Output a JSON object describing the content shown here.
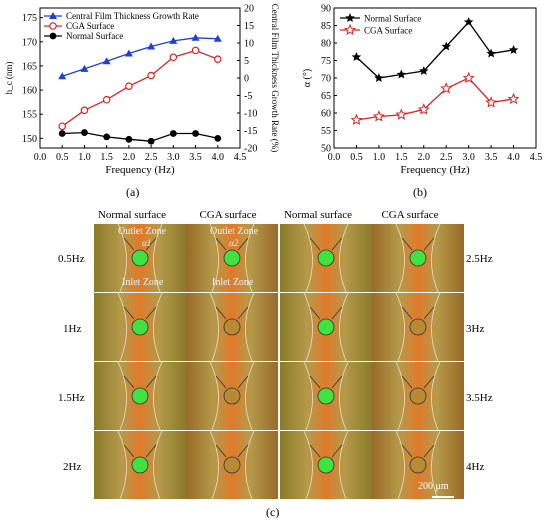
{
  "chart_data": [
    {
      "id": "a",
      "type": "line",
      "panel_label": "(a)",
      "xlabel": "Frequency (Hz)",
      "ylabel_left": "h_c (nm)",
      "ylabel_right": "Central Film Thickness Growth Rate (%)",
      "xlim": [
        0.0,
        4.5
      ],
      "xticks": [
        "0.0",
        "0.5",
        "1.0",
        "1.5",
        "2.0",
        "2.5",
        "3.0",
        "3.5",
        "4.0",
        "4.5"
      ],
      "ylim_left": [
        148,
        177
      ],
      "yticks_left": [
        "150",
        "155",
        "160",
        "165",
        "170",
        "175"
      ],
      "ylim_right": [
        -20,
        20
      ],
      "yticks_right": [
        "-20",
        "-15",
        "-10",
        "-5",
        "0",
        "5",
        "10",
        "15",
        "20"
      ],
      "x": [
        0.5,
        1.0,
        1.5,
        2.0,
        2.5,
        3.0,
        3.5,
        4.0
      ],
      "series": [
        {
          "name": "Central Film Thickness Growth Rate",
          "axis": "right",
          "color": "#1f3fd6",
          "marker": "triangle",
          "values": [
            0.5,
            2.6,
            4.8,
            7.0,
            9.0,
            10.6,
            11.5,
            11.2
          ]
        },
        {
          "name": "CGA Surface",
          "axis": "left",
          "color": "#e02020",
          "marker": "open-circle",
          "values": [
            152.5,
            155.8,
            158.0,
            160.8,
            163.0,
            166.8,
            168.2,
            166.4
          ]
        },
        {
          "name": "Normal Surface",
          "axis": "left",
          "color": "#000000",
          "marker": "filled-circle",
          "values": [
            151.0,
            151.2,
            150.3,
            149.8,
            149.4,
            151.0,
            151.0,
            150.0
          ]
        }
      ],
      "legend_position": "top-left"
    },
    {
      "id": "b",
      "type": "line",
      "panel_label": "(b)",
      "xlabel": "Frequency (Hz)",
      "ylabel": "α (°)",
      "xlim": [
        0.0,
        4.5
      ],
      "xticks": [
        "0.0",
        "0.5",
        "1.0",
        "1.5",
        "2.0",
        "2.5",
        "3.0",
        "3.5",
        "4.0",
        "4.5"
      ],
      "ylim": [
        50,
        90
      ],
      "yticks": [
        "50",
        "55",
        "60",
        "65",
        "70",
        "75",
        "80",
        "85",
        "90"
      ],
      "x": [
        0.5,
        1.0,
        1.5,
        2.0,
        2.5,
        3.0,
        3.5,
        4.0
      ],
      "series": [
        {
          "name": "Normal Surface",
          "color": "#000000",
          "marker": "filled-star",
          "values": [
            76,
            70,
            71,
            72,
            79,
            86,
            77,
            78
          ]
        },
        {
          "name": "CGA Surface",
          "color": "#e02020",
          "marker": "open-star",
          "values": [
            58,
            59,
            59.5,
            61,
            67,
            70,
            63,
            64
          ]
        }
      ],
      "legend_position": "top-left"
    }
  ],
  "micrographs": {
    "panel_label": "(c)",
    "column_headers": [
      "Normal surface",
      "CGA surface",
      "Normal surface",
      "CGA surface"
    ],
    "left_row_labels": [
      "0.5Hz",
      "1Hz",
      "1.5Hz",
      "2Hz"
    ],
    "right_row_labels": [
      "2.5Hz",
      "3Hz",
      "3.5Hz",
      "4Hz"
    ],
    "zone_labels": {
      "outlet": "Outlet Zone",
      "inlet": "Inlet Zone"
    },
    "angle_labels": [
      "α1",
      "α2"
    ],
    "scale_bar": "200 μm",
    "colors": {
      "normal_bg": "#8a7a2a",
      "cga_bg": "#9a6a28",
      "stripe": "#e07a2a",
      "contact": "#3fe23f"
    }
  }
}
